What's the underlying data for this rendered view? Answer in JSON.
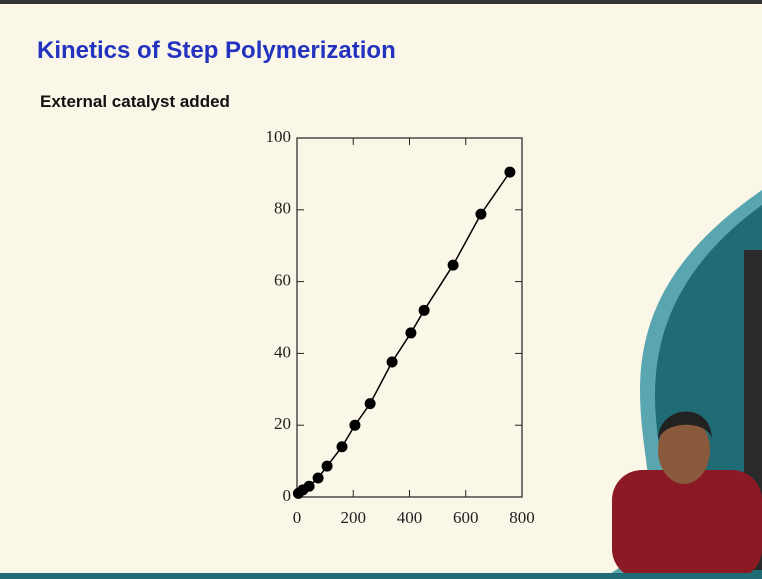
{
  "chart_data": {
    "type": "scatter",
    "title": "Kinetics of Step Polymerization",
    "subtitle": "External catalyst added",
    "x": [
      5,
      21,
      43,
      75,
      107,
      160,
      206,
      260,
      338,
      405,
      452,
      555,
      654,
      757
    ],
    "values": [
      1,
      2,
      3,
      5.3,
      8.6,
      14,
      20,
      26,
      37.6,
      45.7,
      52,
      64.6,
      78.8,
      90.5
    ],
    "color": "#000000",
    "connect": true,
    "xlim": [
      0,
      800
    ],
    "xticks": [
      0,
      200,
      400,
      600,
      800
    ],
    "ylim": [
      0,
      100
    ],
    "yticks": [
      0,
      20,
      40,
      60,
      80,
      100
    ]
  }
}
